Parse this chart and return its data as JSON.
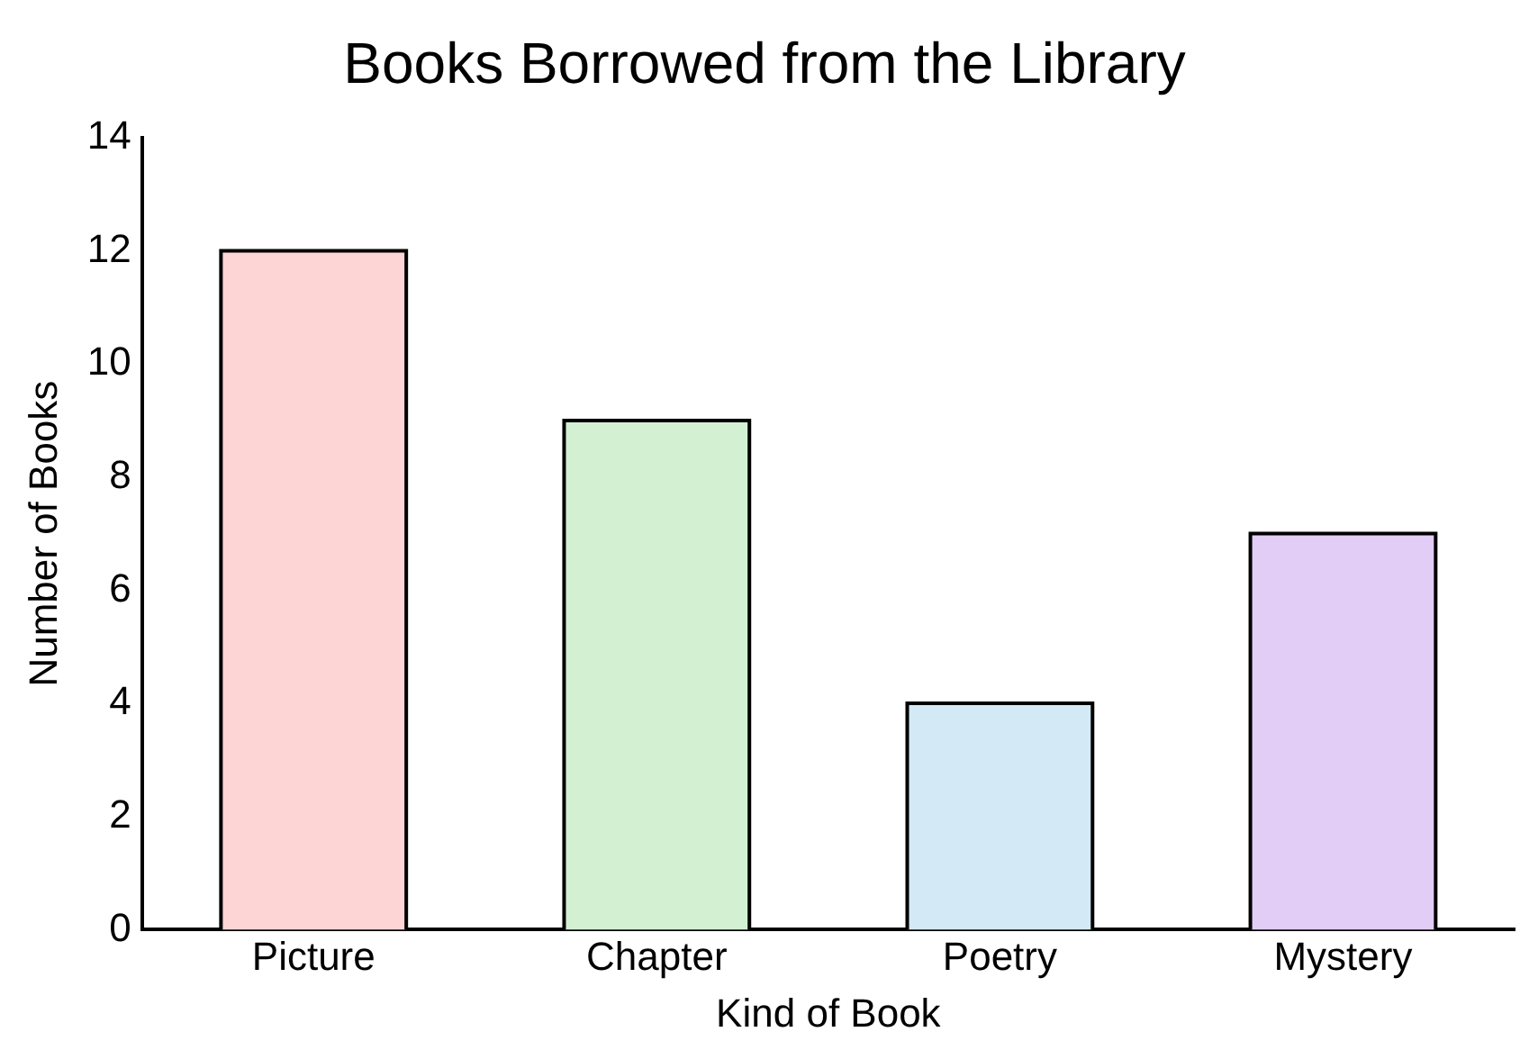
{
  "chart_data": {
    "type": "bar",
    "title": "Books Borrowed from the Library",
    "xlabel": "Kind of Book",
    "ylabel": "Number of Books",
    "categories": [
      "Picture",
      "Chapter",
      "Poetry",
      "Mystery"
    ],
    "values": [
      12,
      9,
      4,
      7
    ],
    "colors": [
      "#fdd5d5",
      "#d3f0d3",
      "#d3eaf6",
      "#e2cdf6"
    ],
    "ylim": [
      0,
      14
    ],
    "yticks": [
      0,
      2,
      4,
      6,
      8,
      10,
      12,
      14
    ],
    "grid": false,
    "legend": false
  }
}
